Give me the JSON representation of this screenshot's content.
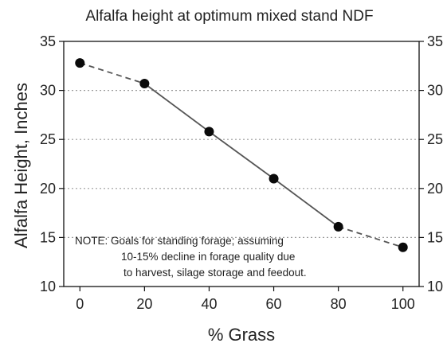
{
  "chart_data": {
    "type": "line",
    "title": "Alfalfa height at optimum mixed stand NDF",
    "xlabel": "% Grass",
    "ylabel": "Alfalfa Height, Inches",
    "xlim": [
      -5,
      105
    ],
    "ylim": [
      10,
      35
    ],
    "x_ticks": [
      "0",
      "20",
      "40",
      "60",
      "80",
      "100"
    ],
    "y_ticks_left": [
      "10",
      "15",
      "20",
      "25",
      "30",
      "35"
    ],
    "y_ticks_right": [
      "10",
      "15",
      "20",
      "25",
      "30",
      "35"
    ],
    "grid": "horizontal dotted",
    "series": [
      {
        "x": [
          0,
          20,
          40,
          60,
          80,
          100
        ],
        "y": [
          32.8,
          30.7,
          25.8,
          21.0,
          16.1,
          14.0
        ],
        "line_style_by_segment": [
          "dashed",
          "solid",
          "solid",
          "solid",
          "dashed"
        ]
      }
    ],
    "note": [
      "NOTE: Goals for standing forage; assuming",
      "10-15% decline in forage quality due",
      "to harvest, silage storage and feedout."
    ]
  }
}
